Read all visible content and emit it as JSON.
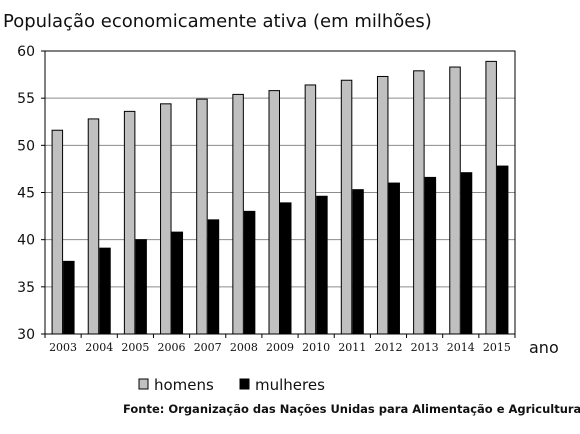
{
  "chart_data": {
    "type": "bar",
    "title": "População economicamente ativa (em milhões)",
    "xlabel": "ano",
    "ylabel": "",
    "ylim": [
      30,
      60
    ],
    "yticks": [
      "30",
      "35",
      "40",
      "45",
      "50",
      "55",
      "60"
    ],
    "grid": true,
    "legend_position": "bottom",
    "categories": [
      "2003",
      "2004",
      "2005",
      "2006",
      "2007",
      "2008",
      "2009",
      "2010",
      "2011",
      "2012",
      "2013",
      "2014",
      "2015"
    ],
    "series": [
      {
        "name": "homens",
        "color": "#c0c0c0",
        "values": [
          51.6,
          52.8,
          53.6,
          54.4,
          54.9,
          55.4,
          55.8,
          56.4,
          56.9,
          57.3,
          57.9,
          58.3,
          58.9
        ]
      },
      {
        "name": "mulheres",
        "color": "#000000",
        "values": [
          37.7,
          39.1,
          40.0,
          40.8,
          42.1,
          43.0,
          43.9,
          44.6,
          45.3,
          46.0,
          46.6,
          47.1,
          47.8
        ]
      }
    ],
    "source": "Fonte: Organização das Nações Unidas para Alimentação e Agricultura"
  }
}
